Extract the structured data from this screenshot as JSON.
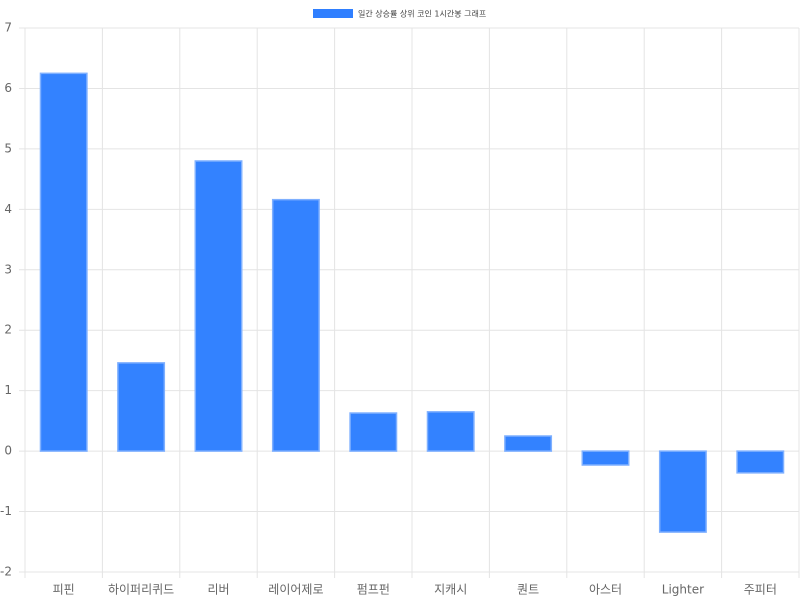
{
  "chart_data": {
    "type": "bar",
    "categories": [
      "피핀",
      "하이퍼리퀴드",
      "리버",
      "레이어제로",
      "펌프펀",
      "지캐시",
      "퀀트",
      "아스터",
      "Lighter",
      "주피터"
    ],
    "series": [
      {
        "name": "일간 상승률 상위 코인 1시간봉 그래프",
        "color": "#2f7fff",
        "values": [
          6.25,
          1.46,
          4.8,
          4.16,
          0.63,
          0.65,
          0.25,
          -0.23,
          -1.34,
          -0.36
        ]
      }
    ],
    "ylim": [
      -2,
      7
    ],
    "yticks": [
      -2,
      -1,
      0,
      1,
      2,
      3,
      4,
      5,
      6,
      7
    ],
    "grid": true,
    "legend": "top"
  }
}
